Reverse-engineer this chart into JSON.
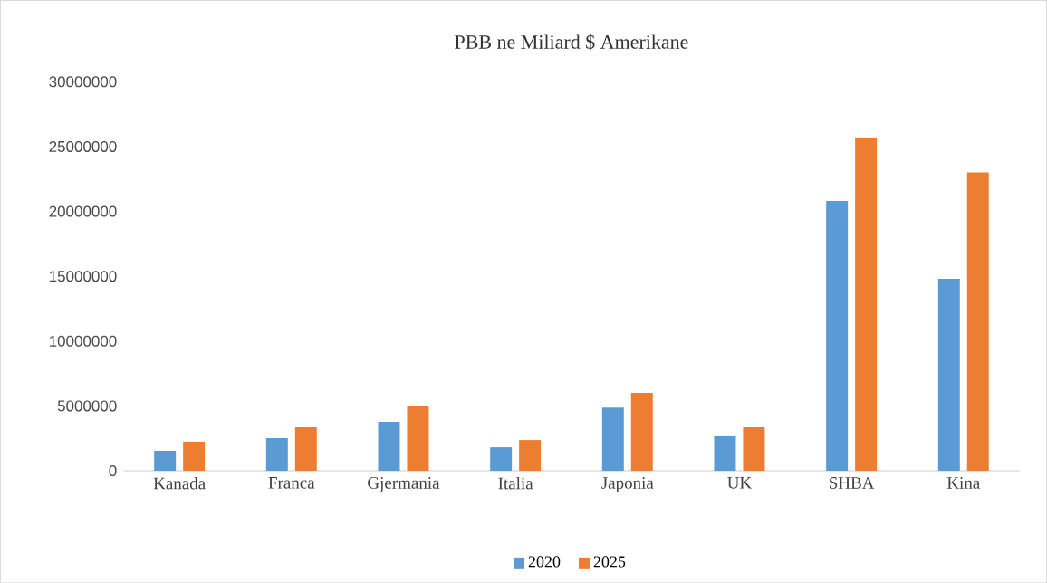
{
  "chart_data": {
    "type": "bar",
    "title": "PBB ne Miliard  $ Amerikane",
    "categories": [
      "Kanada",
      "Franca",
      "Gjermania",
      "Italia",
      "Japonia",
      "UK",
      "SHBA",
      "Kina"
    ],
    "series": [
      {
        "name": "2020",
        "color": "#5b9bd5",
        "values": [
          1530000,
          2510000,
          3770000,
          1810000,
          4880000,
          2650000,
          20800000,
          14800000
        ]
      },
      {
        "name": "2025",
        "color": "#ed7d31",
        "values": [
          2230000,
          3350000,
          5020000,
          2370000,
          6000000,
          3350000,
          25700000,
          23000000
        ]
      }
    ],
    "ylim": [
      0,
      30000000
    ],
    "yticks": [
      0,
      5000000,
      10000000,
      15000000,
      20000000,
      25000000,
      30000000
    ],
    "grid": false,
    "legend": "bottom"
  }
}
